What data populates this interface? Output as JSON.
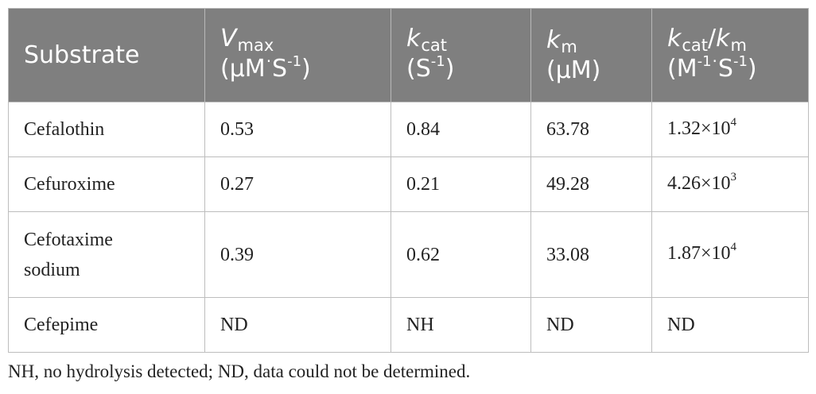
{
  "table": {
    "headers": {
      "substrate": "Substrate",
      "vmax_symbol": "V",
      "vmax_sub": "max",
      "vmax_unit_open": "(μM",
      "vmax_unit_dot": "·",
      "vmax_unit_s": "S",
      "vmax_unit_exp": "-1",
      "vmax_unit_close": ")",
      "kcat_symbol": "k",
      "kcat_sub": "cat",
      "kcat_unit_open": "(S",
      "kcat_unit_exp": "-1",
      "kcat_unit_close": ")",
      "km_symbol": "k",
      "km_sub": "m",
      "km_unit": "(μM)",
      "ratio_k1": "k",
      "ratio_sub1": "cat",
      "ratio_slash": "/",
      "ratio_k2": "k",
      "ratio_sub2": "m",
      "ratio_unit_open": "(M",
      "ratio_unit_exp1": "-1",
      "ratio_unit_dot": "·",
      "ratio_unit_s": "S",
      "ratio_unit_exp2": "-1",
      "ratio_unit_close": ")"
    },
    "rows": [
      {
        "substrate": "Cefalothin",
        "vmax": "0.53",
        "kcat": "0.84",
        "km": "63.78",
        "ratio_base": "1.32×10",
        "ratio_exp": "4"
      },
      {
        "substrate": "Cefuroxime",
        "vmax": "0.27",
        "kcat": "0.21",
        "km": "49.28",
        "ratio_base": "4.26×10",
        "ratio_exp": "3"
      },
      {
        "substrate_line1": "Cefotaxime",
        "substrate_line2": "sodium",
        "vmax": "0.39",
        "kcat": "0.62",
        "km": "33.08",
        "ratio_base": "1.87×10",
        "ratio_exp": "4"
      },
      {
        "substrate": "Cefepime",
        "vmax": "ND",
        "kcat": "NH",
        "km": "ND",
        "ratio": "ND"
      }
    ]
  },
  "footnote": "NH, no hydrolysis detected; ND, data could not be determined."
}
